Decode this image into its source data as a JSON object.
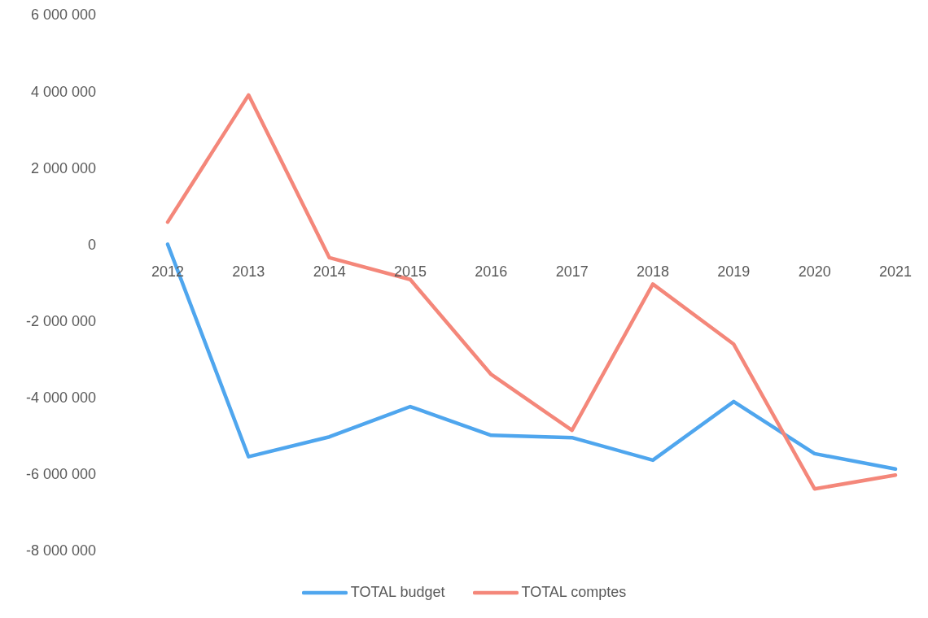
{
  "chart_data": {
    "type": "line",
    "categories": [
      "2012",
      "2013",
      "2014",
      "2015",
      "2016",
      "2017",
      "2018",
      "2019",
      "2020",
      "2021"
    ],
    "series": [
      {
        "name": "TOTAL budget",
        "color": "#4fa6ee",
        "values": [
          0,
          -5550000,
          -5030000,
          -4240000,
          -4990000,
          -5050000,
          -5640000,
          -4110000,
          -5470000,
          -5870000
        ]
      },
      {
        "name": "TOTAL comptes",
        "color": "#f4877a",
        "values": [
          580000,
          3900000,
          -350000,
          -920000,
          -3400000,
          -4860000,
          -1040000,
          -2610000,
          -6390000,
          -6030000
        ]
      }
    ],
    "ylim": [
      -8000000,
      6000000
    ],
    "yticks": [
      {
        "value": -8000000,
        "label": "-8 000 000"
      },
      {
        "value": -6000000,
        "label": "-6 000 000"
      },
      {
        "value": -4000000,
        "label": "-4 000 000"
      },
      {
        "value": -2000000,
        "label": "-2 000 000"
      },
      {
        "value": 0,
        "label": "0"
      },
      {
        "value": 2000000,
        "label": "2 000 000"
      },
      {
        "value": 4000000,
        "label": "4 000 000"
      },
      {
        "value": 6000000,
        "label": "6 000 000"
      }
    ],
    "grid": false,
    "legend": "bottom",
    "marker": "none",
    "line_style": "solid"
  }
}
